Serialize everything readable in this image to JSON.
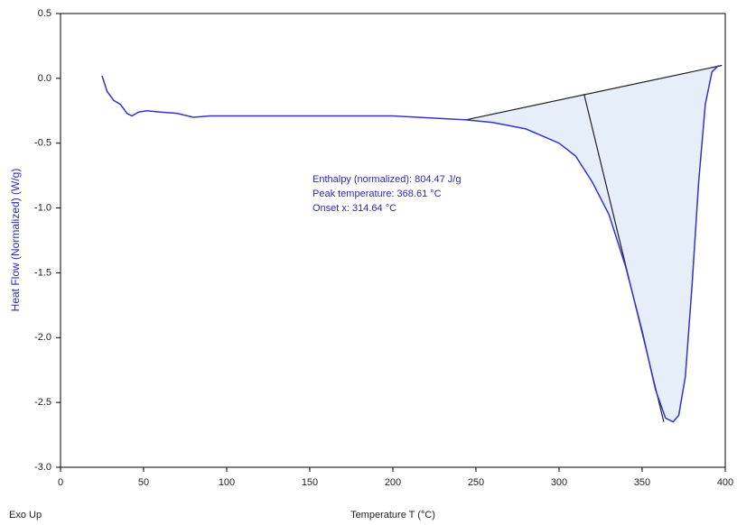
{
  "chart_data": {
    "type": "line",
    "y_label": "Heat Flow (Normalized) (W/g)",
    "x_label": "Temperature T (°C)",
    "corner_note": "Exo Up",
    "annotations": [
      "Enthalpy (normalized): 804.47 J/g",
      "Peak temperature: 368.61 °C",
      "Onset x: 314.64 °C"
    ],
    "x": [
      25,
      28,
      32,
      36,
      40,
      43,
      47,
      52,
      60,
      70,
      80,
      90,
      100,
      150,
      200,
      244,
      260,
      280,
      300,
      310,
      320,
      330,
      340,
      350,
      358,
      364,
      368.6,
      372,
      376,
      380,
      384,
      388,
      392,
      396
    ],
    "series": [
      {
        "name": "Heat Flow",
        "color": "#3333cc",
        "values": [
          0.02,
          -0.1,
          -0.17,
          -0.2,
          -0.27,
          -0.29,
          -0.26,
          -0.25,
          -0.26,
          -0.27,
          -0.3,
          -0.29,
          -0.29,
          -0.29,
          -0.29,
          -0.32,
          -0.34,
          -0.39,
          -0.5,
          -0.6,
          -0.8,
          -1.05,
          -1.45,
          -1.95,
          -2.4,
          -2.62,
          -2.65,
          -2.6,
          -2.3,
          -1.6,
          -0.8,
          -0.2,
          0.05,
          0.1
        ]
      }
    ],
    "baseline": {
      "x": [
        244,
        398
      ],
      "y": [
        -0.32,
        0.1
      ]
    },
    "tangent": {
      "x": [
        315,
        363
      ],
      "y": [
        -0.12,
        -2.65
      ]
    },
    "fill_color": "#e6eefa",
    "xlim": [
      0,
      400
    ],
    "xticks": [
      0,
      50,
      100,
      150,
      200,
      250,
      300,
      350,
      400
    ],
    "ylim": [
      -3,
      0.5
    ],
    "yticks": [
      0.5,
      {
        "value": 0,
        "label": "0.0"
      },
      -0.5,
      {
        "value": -1,
        "label": "-1.0"
      },
      -1.5,
      {
        "value": -2,
        "label": "-2.0"
      },
      -2.5,
      {
        "value": -3,
        "label": "-3.0"
      }
    ]
  }
}
